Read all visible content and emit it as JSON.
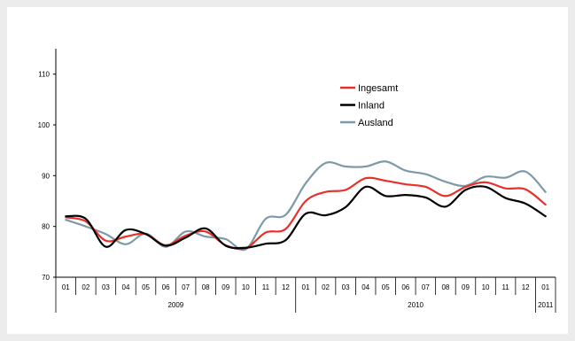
{
  "chart_data": {
    "type": "line",
    "title": "",
    "xlabel": "",
    "ylabel": "",
    "ylim": [
      70,
      115
    ],
    "yticks": [
      70,
      80,
      90,
      100,
      110
    ],
    "grid": false,
    "legend_position": "top-center",
    "x_months": [
      "01",
      "02",
      "03",
      "04",
      "05",
      "06",
      "07",
      "08",
      "09",
      "10",
      "11",
      "12",
      "01",
      "02",
      "03",
      "04",
      "05",
      "06",
      "07",
      "08",
      "09",
      "10",
      "11",
      "12",
      "01"
    ],
    "year_groups": [
      {
        "label": "2009",
        "start": 0,
        "end": 12
      },
      {
        "label": "2010",
        "start": 12,
        "end": 24
      },
      {
        "label": "2011",
        "start": 24,
        "end": 25
      }
    ],
    "series": [
      {
        "name": "Ingesamt",
        "color": "#e8302a",
        "values": [
          81.8,
          81.0,
          77.2,
          78.0,
          78.5,
          76.3,
          78.2,
          79.0,
          76.3,
          75.7,
          78.8,
          79.5,
          85.0,
          86.8,
          87.2,
          89.5,
          89.0,
          88.3,
          87.8,
          86.0,
          87.8,
          88.7,
          87.5,
          87.3,
          84.3
        ]
      },
      {
        "name": "Inland",
        "color": "#000000",
        "values": [
          82.0,
          81.5,
          76.0,
          79.3,
          78.5,
          76.2,
          77.8,
          79.6,
          76.2,
          75.8,
          76.6,
          77.3,
          82.5,
          82.2,
          83.8,
          87.8,
          86.0,
          86.2,
          85.7,
          83.9,
          87.2,
          87.8,
          85.6,
          84.5,
          82.0
        ]
      },
      {
        "name": "Ausland",
        "color": "#7d9aa8",
        "values": [
          81.3,
          80.0,
          78.5,
          76.5,
          78.6,
          76.0,
          79.0,
          78.0,
          77.5,
          75.5,
          81.5,
          82.3,
          88.5,
          92.5,
          91.8,
          91.8,
          92.8,
          91.0,
          90.3,
          88.8,
          88.0,
          89.8,
          89.6,
          90.8,
          86.8
        ]
      }
    ]
  }
}
